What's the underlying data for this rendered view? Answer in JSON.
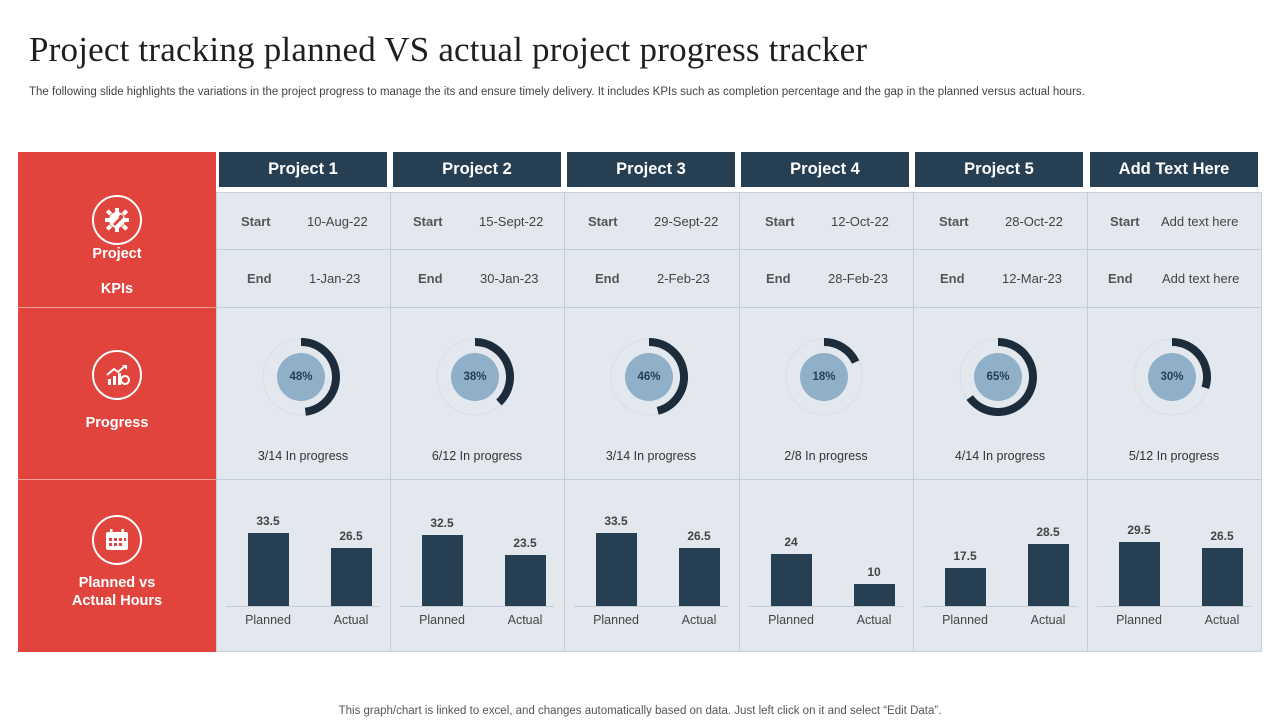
{
  "header": {
    "title": "Project tracking planned VS actual project progress tracker",
    "subtitle": "The following slide highlights the variations in the project progress to manage the its and ensure timely delivery. It includes KPIs such as completion percentage and the gap in the planned versus actual hours."
  },
  "rows": {
    "kpis_line1": "Project",
    "kpis_line2": "KPIs",
    "progress": "Progress",
    "hours_line1": "Planned vs",
    "hours_line2": "Actual Hours"
  },
  "labels": {
    "start": "Start",
    "end": "End"
  },
  "projects": [
    {
      "name": "Project 1",
      "start": "10-Aug-22",
      "end": "1-Jan-23",
      "percent_label": "48%",
      "in_progress": "3/14 In progress"
    },
    {
      "name": "Project 2",
      "start": "15-Sept-22",
      "end": "30-Jan-23",
      "percent_label": "38%",
      "in_progress": "6/12 In progress"
    },
    {
      "name": "Project 3",
      "start": "29-Sept-22",
      "end": "2-Feb-23",
      "percent_label": "46%",
      "in_progress": "3/14 In progress"
    },
    {
      "name": "Project 4",
      "start": "12-Oct-22",
      "end": "28-Feb-23",
      "percent_label": "18%",
      "in_progress": "2/8 In progress"
    },
    {
      "name": "Project 5",
      "start": "28-Oct-22",
      "end": "12-Mar-23",
      "percent_label": "65%",
      "in_progress": "4/14 In progress"
    },
    {
      "name": "Add Text Here",
      "start": "Add text here",
      "end": "Add text here",
      "percent_label": "30%",
      "in_progress": "5/12 In progress"
    }
  ],
  "chart_data": [
    {
      "type": "pie",
      "title": "Progress",
      "categories": [
        "Project 1",
        "Project 2",
        "Project 3",
        "Project 4",
        "Project 5",
        "Add Text Here"
      ],
      "values": [
        48,
        38,
        46,
        18,
        65,
        30
      ],
      "unit": "%"
    },
    {
      "type": "bar",
      "title": "Planned vs Actual Hours",
      "categories": [
        "Project 1",
        "Project 2",
        "Project 3",
        "Project 4",
        "Project 5",
        "Add Text Here"
      ],
      "series": [
        {
          "name": "Planned",
          "values": [
            33.5,
            32.5,
            33.5,
            24,
            17.5,
            29.5
          ]
        },
        {
          "name": "Actual",
          "values": [
            26.5,
            23.5,
            26.5,
            10,
            28.5,
            26.5
          ]
        }
      ],
      "bar_labels": [
        [
          "33.5",
          "26.5"
        ],
        [
          "32.5",
          "23.5"
        ],
        [
          "33.5",
          "26.5"
        ],
        [
          "24",
          "10"
        ],
        [
          "17.5",
          "28.5"
        ],
        [
          "29.5",
          "26.5"
        ]
      ],
      "ylim": [
        0,
        35
      ]
    }
  ],
  "colors": {
    "red_panel": "#e0443d",
    "header_navy": "#263f53",
    "grid_bg": "#e3e8ee",
    "donut_fill": "#90afc8",
    "donut_arc": "#1c2c3b",
    "bar": "#263f53"
  },
  "icons": {
    "kpis": "gear-wrench-icon",
    "progress": "growth-chart-icon",
    "hours": "calendar-icon"
  },
  "footer": "This graph/chart is linked to excel, and changes automatically based on data. Just left click on it and select “Edit Data”."
}
